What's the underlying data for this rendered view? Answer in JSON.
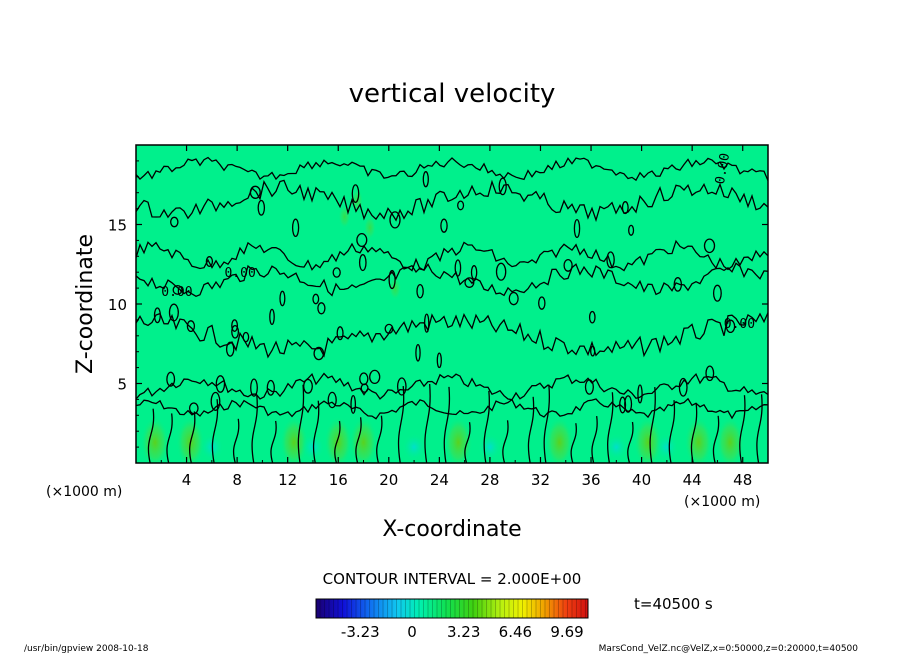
{
  "chart_data": {
    "type": "heatmap",
    "title": "vertical velocity",
    "xlabel": "X-coordinate",
    "ylabel": "Z-coordinate",
    "x_unit": "(×1000 m)",
    "y_unit": "(×1000 m)",
    "xlim": [
      0,
      50
    ],
    "ylim": [
      0,
      20
    ],
    "x_ticks": [
      4,
      8,
      12,
      16,
      20,
      24,
      28,
      32,
      36,
      40,
      44,
      48
    ],
    "y_ticks": [
      5,
      10,
      15
    ],
    "contour_interval": "CONTOUR INTERVAL = 2.000E+00",
    "contour_labels": [
      "0.00",
      "0.00",
      "0.00",
      "0.00"
    ],
    "time_label": "t=40500 s",
    "colorbar": {
      "ticks": [
        -3.23,
        0,
        3.23,
        6.46,
        9.69
      ],
      "tick_labels": [
        "-3.23",
        "0",
        "3.23",
        "6.46",
        "9.69"
      ],
      "range": [
        -6.0,
        11.0
      ]
    },
    "updraft_columns_x": [
      1.5,
      4.3,
      12.5,
      16,
      18,
      25.5,
      33.5,
      40.5,
      44.5,
      47
    ]
  },
  "footer": {
    "left": "/usr/bin/gpview  2008-10-18",
    "right": "MarsCond_VelZ.nc@VelZ,x=0:50000,z=0:20000,t=40500"
  },
  "colors": {
    "background_field": "#00f08c",
    "contour": "#000000"
  }
}
